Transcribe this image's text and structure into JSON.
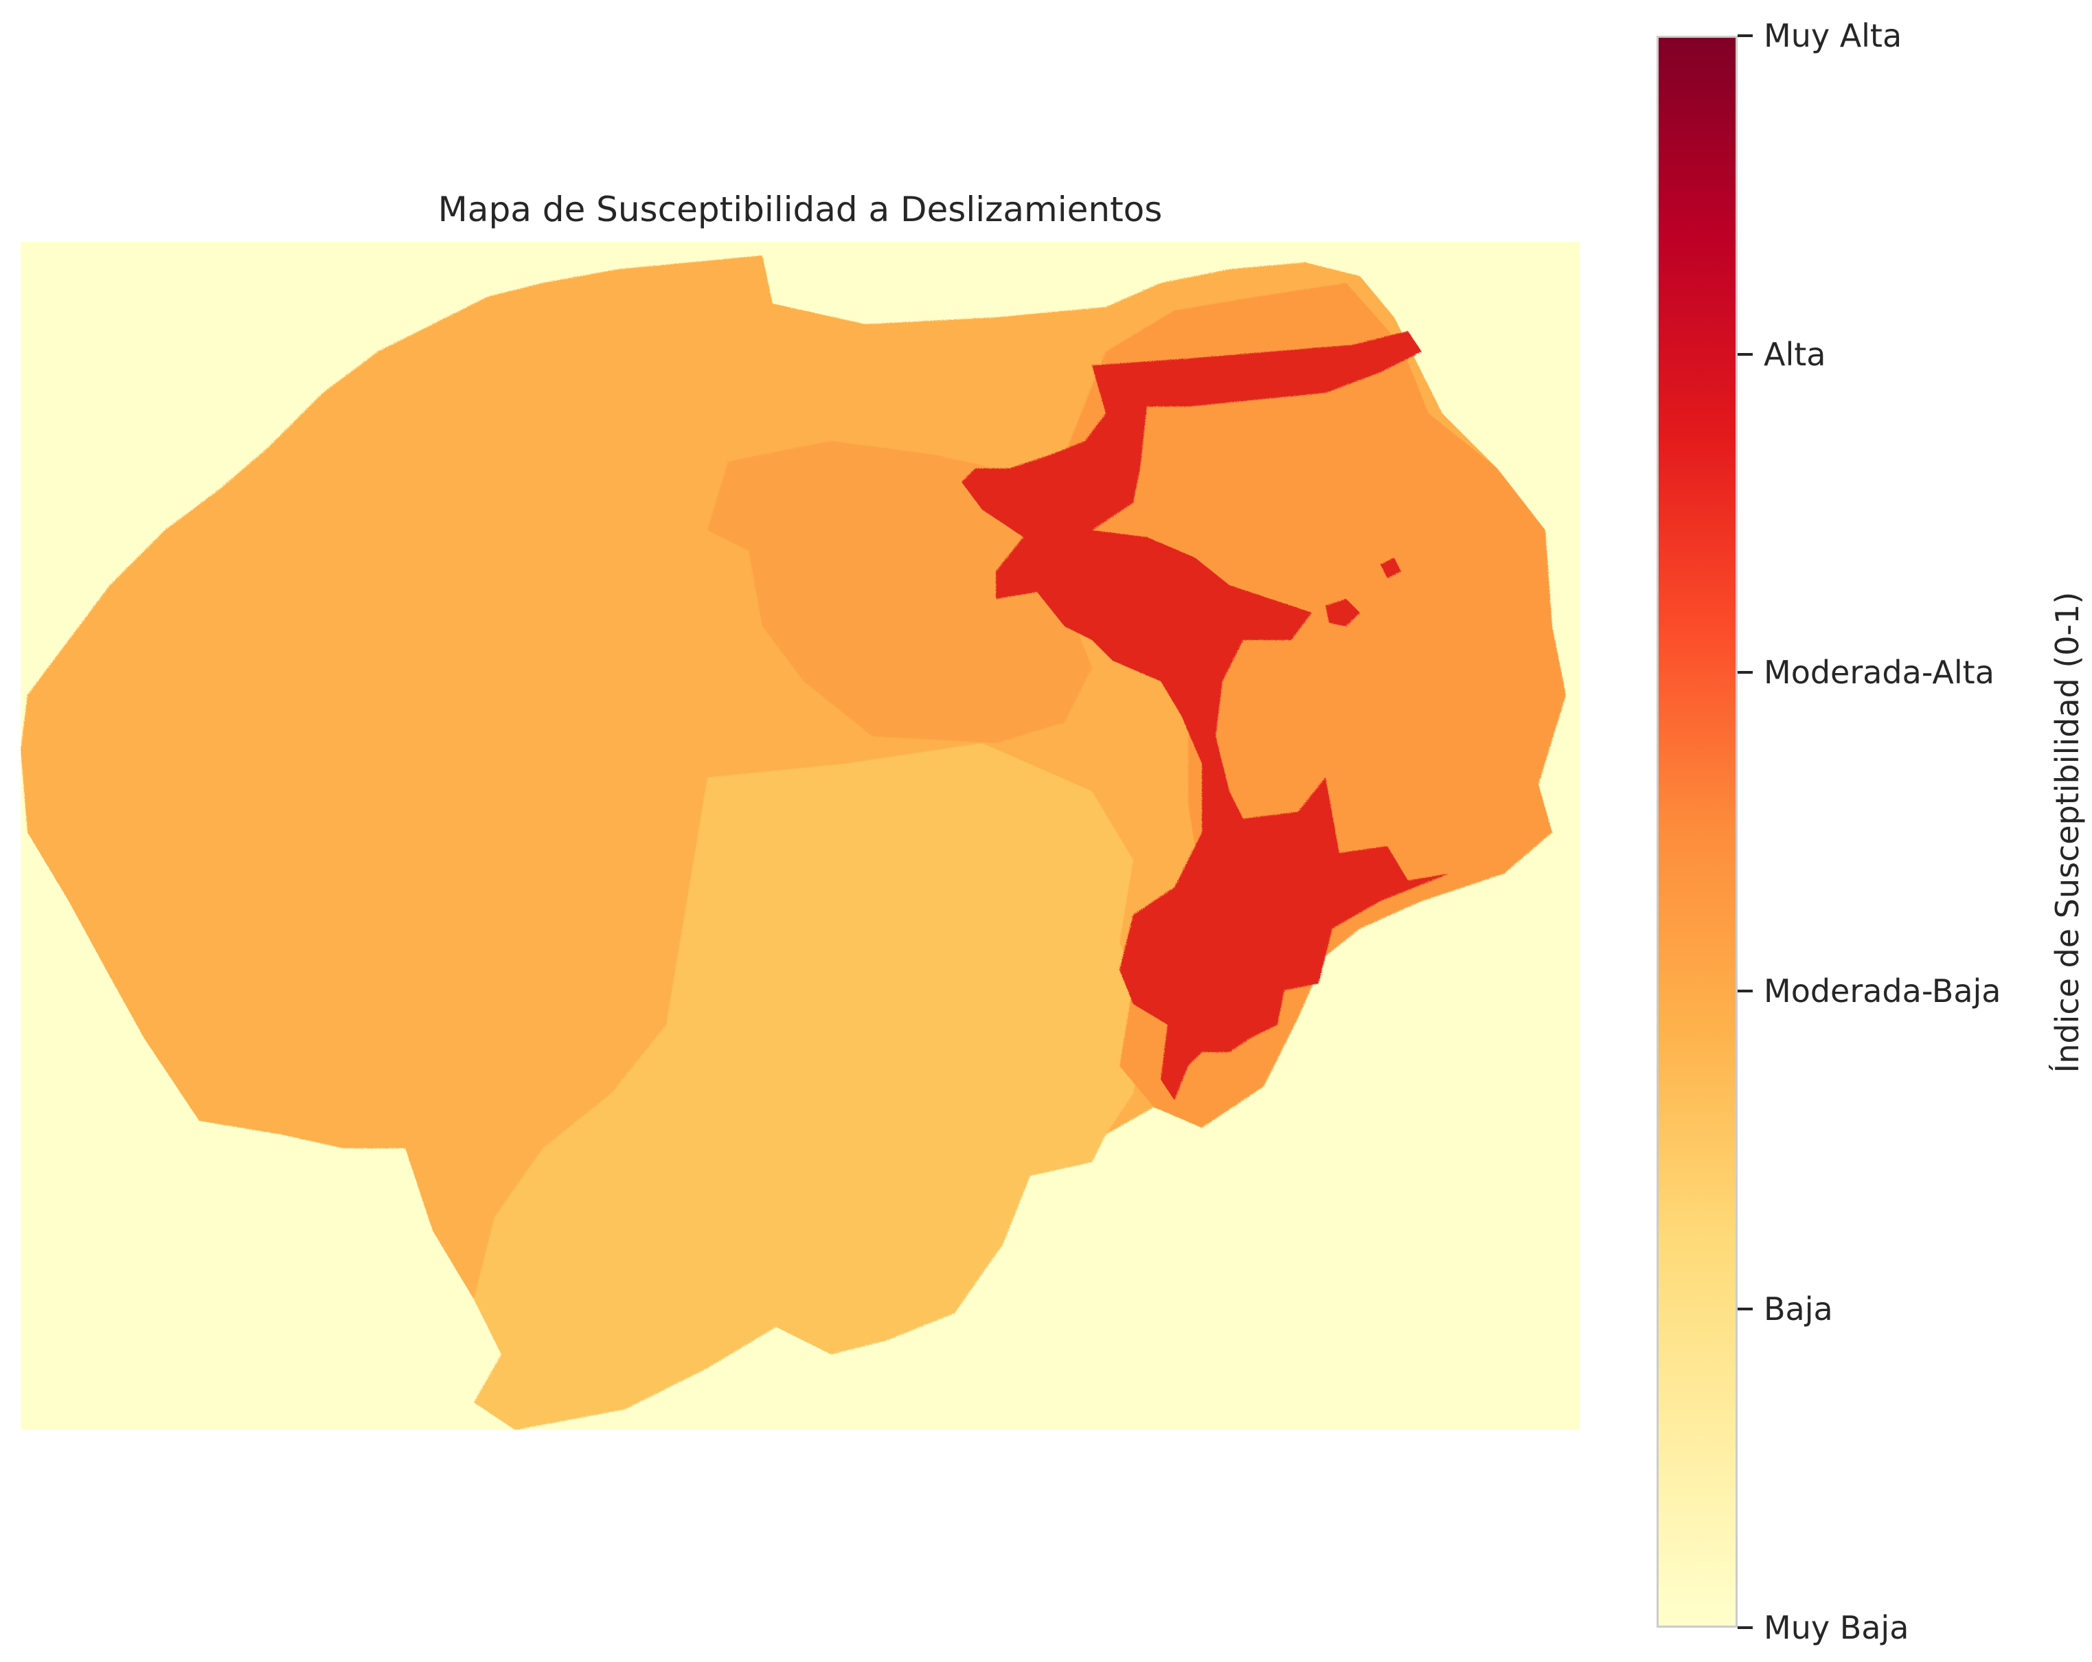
{
  "title": "Mapa de Susceptibilidad a Deslizamientos",
  "colorbar": {
    "label": "Índice de Susceptibilidad (0-1)",
    "range": [
      0,
      1
    ],
    "colormap": "YlOrRd",
    "stops": [
      "#ffffcc",
      "#ffeda0",
      "#fed976",
      "#feb24c",
      "#fd8d3c",
      "#fc4e2a",
      "#e31a1c",
      "#bd0026",
      "#800026"
    ],
    "ticks": [
      {
        "value": 0.0,
        "label": "Muy Baja"
      },
      {
        "value": 0.2,
        "label": "Baja"
      },
      {
        "value": 0.4,
        "label": "Moderada-Baja"
      },
      {
        "value": 0.6,
        "label": "Moderada-Alta"
      },
      {
        "value": 0.8,
        "label": "Alta"
      },
      {
        "value": 1.0,
        "label": "Muy Alta"
      }
    ]
  },
  "map": {
    "background_color": "#ffffcc",
    "zone_colors": {
      "south_light": "#fec45c",
      "west_main": "#fdb04b",
      "north_mid": "#fca244",
      "east_mid": "#fd9a3f",
      "high": "#e2261d"
    }
  }
}
